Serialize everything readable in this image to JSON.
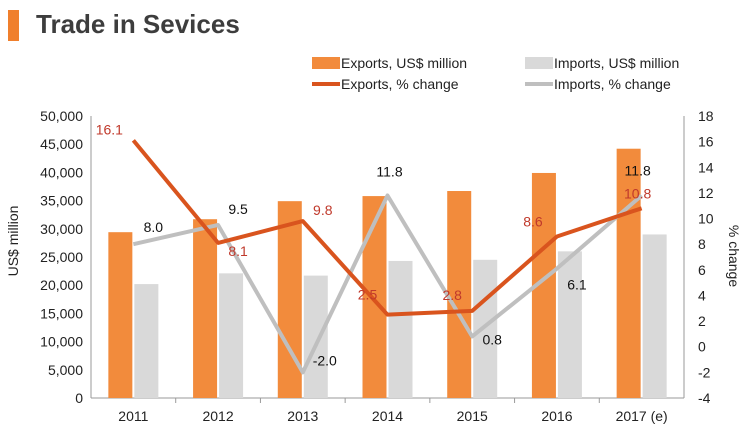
{
  "header": {
    "title": "Trade in Sevices"
  },
  "colors": {
    "accent": "#f07f2c",
    "exports_bar": "#f28b3c",
    "imports_bar": "#d9d9d9",
    "exports_line": "#d9541e",
    "imports_line": "#bfbfbf",
    "exports_label": "#c0392b",
    "imports_label": "#111111"
  },
  "chart_data": {
    "type": "bar",
    "title": "Trade in Sevices",
    "categories": [
      "2011",
      "2012",
      "2013",
      "2014",
      "2015",
      "2016",
      "2017 (e)"
    ],
    "ylabel": "US$ million",
    "y2label": "% change",
    "ylim": [
      0,
      50000
    ],
    "y2lim": [
      -4,
      18
    ],
    "yticks": [
      "0",
      "5,000",
      "10,000",
      "15,000",
      "20,000",
      "25,000",
      "30,000",
      "35,000",
      "40,000",
      "45,000",
      "50,000"
    ],
    "y2ticks": [
      "-4",
      "-2",
      "0",
      "2",
      "4",
      "6",
      "8",
      "10",
      "12",
      "14",
      "16",
      "18"
    ],
    "legend_position": "top-right",
    "series": [
      {
        "name": "Exports, US$ million",
        "kind": "bar",
        "axis": "left",
        "values": [
          29400,
          31700,
          34900,
          35800,
          36700,
          39900,
          44200
        ]
      },
      {
        "name": "Imports, US$ million",
        "kind": "bar",
        "axis": "left",
        "values": [
          20200,
          22100,
          21700,
          24300,
          24500,
          26000,
          29000
        ]
      },
      {
        "name": "Exports, % change",
        "kind": "line",
        "axis": "right",
        "values": [
          16.1,
          8.1,
          9.8,
          2.5,
          2.8,
          8.6,
          10.8
        ],
        "labels": [
          "16.1",
          "8.1",
          "9.8",
          "2.5",
          "2.8",
          "8.6",
          "10.8"
        ]
      },
      {
        "name": "Imports, % change",
        "kind": "line",
        "axis": "right",
        "values": [
          8.0,
          9.5,
          -2.0,
          11.8,
          0.8,
          6.1,
          11.8
        ],
        "labels": [
          "8.0",
          "9.5",
          "-2.0",
          "11.8",
          "0.8",
          "6.1",
          "11.8"
        ]
      }
    ]
  }
}
